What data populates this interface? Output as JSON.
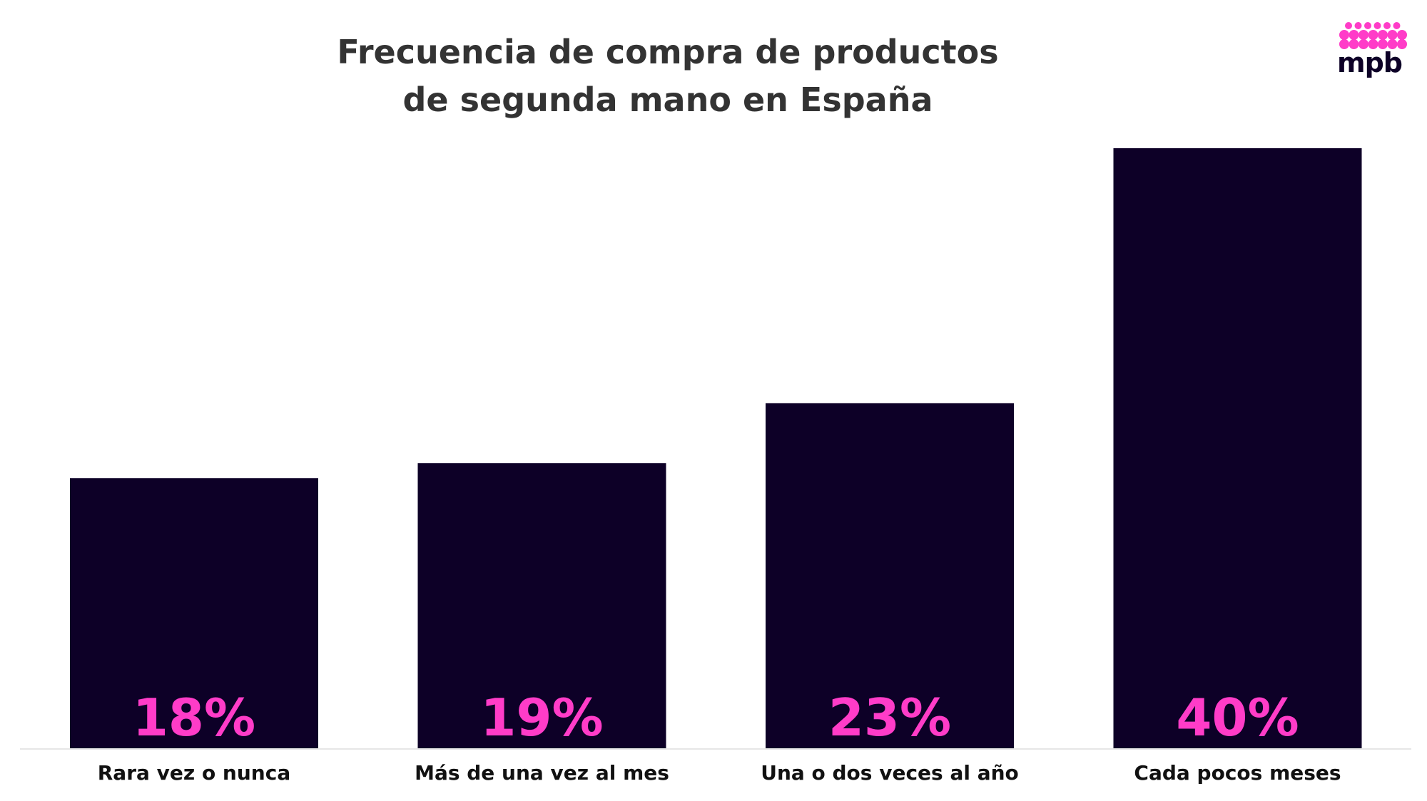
{
  "logo": {
    "text": "mpb",
    "dot_color": "#ff3cc8",
    "text_color": "#0d0027"
  },
  "chart_data": {
    "type": "bar",
    "title": "Frecuencia de compra de productos de segunda mano en España",
    "title_lines": [
      "Frecuencia de compra de productos",
      "de segunda mano en España"
    ],
    "categories": [
      "Rara vez o nunca",
      "Más de una vez al mes",
      "Una o dos veces al año",
      "Cada pocos meses"
    ],
    "values": [
      18,
      19,
      23,
      40
    ],
    "value_labels": [
      "18%",
      "19%",
      "23%",
      "40%"
    ],
    "xlabel": "",
    "ylabel": "",
    "ylim": [
      0,
      40
    ],
    "grid": false,
    "legend": "none",
    "colors": {
      "bar": "#0d0027",
      "value_label": "#ff3cc8",
      "category_label": "#111111",
      "title": "#333333",
      "baseline": "#e6e6e6"
    }
  }
}
